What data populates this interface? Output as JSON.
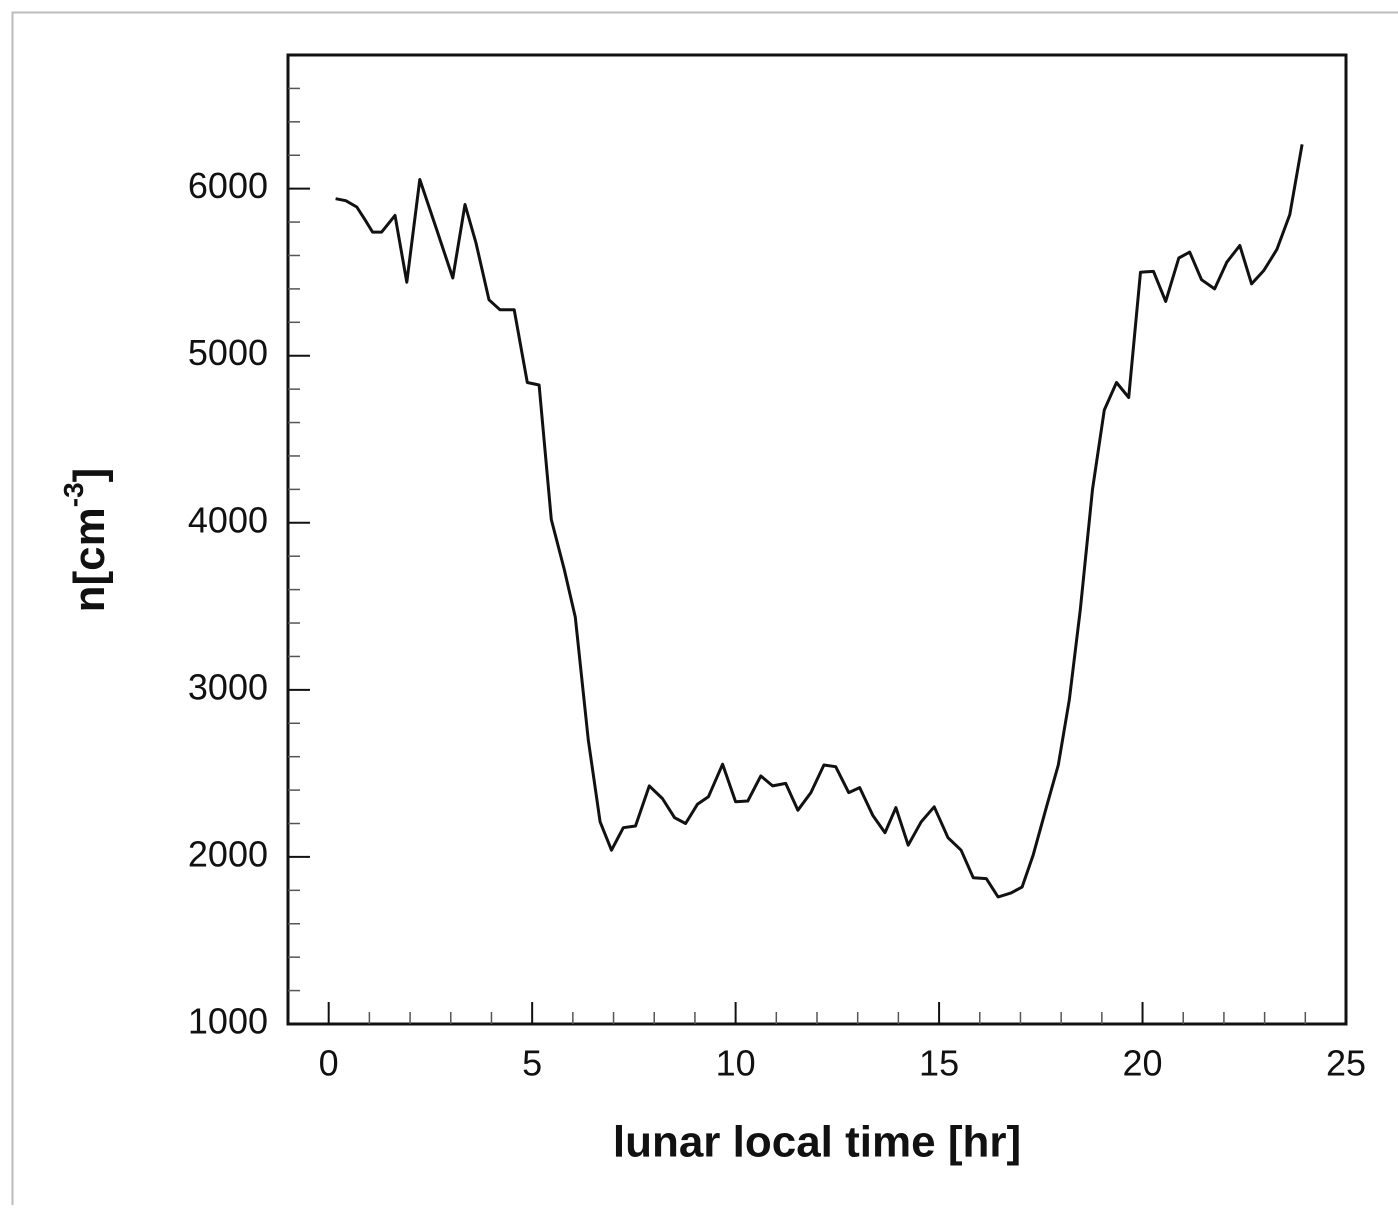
{
  "chart_data": {
    "type": "line",
    "xlabel": "lunar local time [hr]",
    "ylabel": "n[cm",
    "ylabel_sup": "-3",
    "ylabel_end": "]",
    "xlim": [
      -1,
      25
    ],
    "xticks": [
      0,
      5,
      10,
      15,
      20,
      25
    ],
    "xminorticks": [
      1,
      2,
      3,
      4,
      6,
      7,
      8,
      9,
      11,
      12,
      13,
      14,
      16,
      17,
      18,
      19,
      21,
      22,
      23,
      24
    ],
    "ylim": [
      1000,
      6800
    ],
    "yticks": [
      1000,
      2000,
      3000,
      4000,
      5000,
      6000
    ],
    "yminorticks": [
      1200,
      1400,
      1600,
      1800,
      2200,
      2400,
      2600,
      2800,
      3200,
      3400,
      3600,
      3800,
      4200,
      4400,
      4600,
      4800,
      5200,
      5400,
      5600,
      5800,
      6200,
      6400,
      6600
    ],
    "color": "#111111",
    "x": [
      0.17,
      0.42,
      0.69,
      0.89,
      1.08,
      1.3,
      1.63,
      1.92,
      2.24,
      2.64,
      3.05,
      3.35,
      3.62,
      3.94,
      4.21,
      4.56,
      4.88,
      5.17,
      5.47,
      5.79,
      6.06,
      6.38,
      6.67,
      6.95,
      7.24,
      7.54,
      7.88,
      8.2,
      8.5,
      8.77,
      9.06,
      9.33,
      9.68,
      10.0,
      10.3,
      10.62,
      10.91,
      11.23,
      11.53,
      11.85,
      12.17,
      12.46,
      12.78,
      13.05,
      13.37,
      13.67,
      13.94,
      14.24,
      14.56,
      14.88,
      15.22,
      15.54,
      15.84,
      16.16,
      16.45,
      16.77,
      17.04,
      17.31,
      17.64,
      17.93,
      18.2,
      18.47,
      18.77,
      19.06,
      19.36,
      19.66,
      19.95,
      20.27,
      20.57,
      20.89,
      21.16,
      21.45,
      21.77,
      22.07,
      22.39,
      22.68,
      22.98,
      23.3,
      23.62,
      23.92
    ],
    "values": [
      5940,
      5928,
      5890,
      5815,
      5740,
      5740,
      5840,
      5440,
      6055,
      5765,
      5465,
      5905,
      5675,
      5335,
      5275,
      5275,
      4840,
      4825,
      4020,
      3720,
      3435,
      2700,
      2210,
      2040,
      2175,
      2185,
      2425,
      2350,
      2235,
      2200,
      2315,
      2360,
      2555,
      2330,
      2335,
      2485,
      2425,
      2440,
      2280,
      2385,
      2550,
      2540,
      2385,
      2415,
      2250,
      2145,
      2295,
      2070,
      2210,
      2300,
      2115,
      2040,
      1875,
      1870,
      1760,
      1785,
      1820,
      2010,
      2300,
      2550,
      2940,
      3480,
      4200,
      4675,
      4840,
      4750,
      5500,
      5505,
      5325,
      5585,
      5620,
      5455,
      5400,
      5560,
      5660,
      5430,
      5510,
      5635,
      5845,
      6265
    ]
  }
}
